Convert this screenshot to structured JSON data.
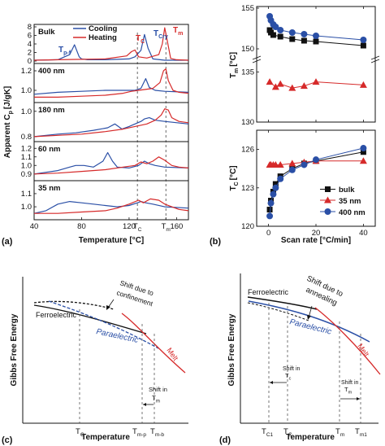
{
  "chart_data": [
    {
      "panel": "(a)",
      "type": "line",
      "xlabel": "Temperature [°C]",
      "ylabel": "Apparent C",
      "ylabel_sub": "p",
      "ylabel_unit": "[J/gK]",
      "xlim": [
        40,
        170
      ],
      "x_ticks": [
        "40",
        "80",
        "120",
        "T",
        "T",
        "160"
      ],
      "x_tick_subs": [
        "",
        "",
        "",
        "C",
        "m",
        ""
      ],
      "legend": [
        {
          "name": "Cooling",
          "color": "#2a4fa6"
        },
        {
          "name": "Heating",
          "color": "#d62a2a"
        }
      ],
      "peak_labels": [
        {
          "text": "T",
          "sub": "p-f",
          "color": "#2a4fa6"
        },
        {
          "text": "T",
          "sub": "C",
          "color": "#d62a2a"
        },
        {
          "text": "T",
          "sub": "Cry",
          "color": "#2a4fa6"
        },
        {
          "text": "T",
          "sub": "m",
          "color": "#d62a2a"
        }
      ],
      "subplots": [
        {
          "label": "Bulk",
          "ylim": [
            0,
            8
          ],
          "ticks": [
            "0",
            "2",
            "4",
            "6",
            "8"
          ],
          "series": [
            {
              "name": "Cooling",
              "x": [
                40,
                60,
                70,
                74,
                78,
                80,
                85,
                100,
                120,
                125,
                130,
                133,
                136,
                140,
                150,
                170
              ],
              "values": [
                0.2,
                0.3,
                1.5,
                3.8,
                1.0,
                0.5,
                0.3,
                0.3,
                0.5,
                1.0,
                2.5,
                6.2,
                3.0,
                0.5,
                0.2,
                0.2
              ]
            },
            {
              "name": "Heating",
              "x": [
                40,
                60,
                80,
                100,
                118,
                122,
                125,
                128,
                135,
                145,
                148,
                150,
                152,
                155,
                160,
                170
              ],
              "values": [
                0.2,
                0.3,
                0.4,
                0.5,
                1.2,
                2.2,
                2.6,
                1.0,
                0.7,
                1.5,
                4.0,
                7.8,
                5.0,
                0.6,
                0.3,
                0.2
              ]
            }
          ]
        },
        {
          "label": "400 nm",
          "ylim": [
            0.9,
            1.25
          ],
          "ticks": [
            "1.0",
            "1.2"
          ],
          "series": [
            {
              "name": "Cooling",
              "x": [
                40,
                60,
                80,
                100,
                115,
                125,
                130,
                134,
                137,
                142,
                150,
                170
              ],
              "values": [
                0.96,
                0.98,
                0.99,
                1.0,
                1.0,
                1.0,
                1.02,
                1.12,
                1.03,
                1.0,
                0.99,
                0.98
              ]
            },
            {
              "name": "Heating",
              "x": [
                40,
                60,
                80,
                100,
                115,
                122,
                128,
                140,
                146,
                149,
                151,
                153,
                157,
                162,
                170
              ],
              "values": [
                0.93,
                0.93,
                0.94,
                0.95,
                0.97,
                0.99,
                1.0,
                1.02,
                1.08,
                1.2,
                1.22,
                1.1,
                1.0,
                0.98,
                0.97
              ]
            }
          ]
        },
        {
          "label": "180 nm",
          "ylim": [
            0.78,
            1.05
          ],
          "ticks": [
            "0.8",
            "1.0"
          ],
          "series": [
            {
              "name": "Cooling",
              "x": [
                40,
                60,
                75,
                90,
                102,
                108,
                114,
                120,
                125,
                130,
                133,
                137,
                142,
                150,
                170
              ],
              "values": [
                0.8,
                0.82,
                0.83,
                0.85,
                0.87,
                0.9,
                0.86,
                0.88,
                0.9,
                0.92,
                0.94,
                0.95,
                0.93,
                0.92,
                0.9
              ]
            },
            {
              "name": "Heating",
              "x": [
                40,
                60,
                80,
                100,
                115,
                125,
                135,
                142,
                147,
                150,
                153,
                156,
                162,
                170
              ],
              "values": [
                0.8,
                0.81,
                0.82,
                0.84,
                0.86,
                0.88,
                0.9,
                0.93,
                0.97,
                1.02,
                1.01,
                0.95,
                0.92,
                0.91
              ]
            }
          ]
        },
        {
          "label": "60 nm",
          "ylim": [
            0.85,
            1.25
          ],
          "ticks": [
            "0.9",
            "1.0",
            "1.1",
            "1.2"
          ],
          "series": [
            {
              "name": "Cooling",
              "x": [
                40,
                50,
                60,
                70,
                75,
                82,
                90,
                98,
                102,
                106,
                110,
                120,
                128,
                133,
                137,
                142,
                150,
                170
              ],
              "values": [
                0.9,
                0.92,
                0.94,
                0.98,
                1.0,
                1.0,
                0.98,
                1.05,
                1.15,
                1.05,
                0.98,
                0.97,
                1.0,
                1.05,
                1.02,
                1.0,
                0.98,
                0.97
              ]
            },
            {
              "name": "Heating",
              "x": [
                40,
                60,
                80,
                100,
                115,
                125,
                130,
                135,
                140,
                145,
                150,
                156,
                162,
                170
              ],
              "values": [
                0.9,
                0.91,
                0.93,
                0.95,
                0.98,
                1.0,
                1.04,
                1.02,
                1.05,
                1.1,
                1.06,
                1.0,
                0.98,
                0.97
              ]
            }
          ]
        },
        {
          "label": "35 nm",
          "ylim": [
            0.92,
            1.18
          ],
          "ticks": [
            "1.0",
            "1.1"
          ],
          "series": [
            {
              "name": "Cooling",
              "x": [
                40,
                50,
                60,
                70,
                80,
                90,
                100,
                110,
                120,
                127,
                130,
                134,
                140,
                150,
                170
              ],
              "values": [
                0.95,
                0.97,
                1.02,
                1.04,
                1.03,
                1.02,
                1.01,
                1.0,
                1.01,
                1.03,
                1.04,
                1.03,
                1.02,
                1.0,
                0.99
              ]
            },
            {
              "name": "Heating",
              "x": [
                40,
                60,
                80,
                100,
                110,
                120,
                128,
                132,
                138,
                145,
                150,
                156,
                162,
                170
              ],
              "values": [
                0.95,
                0.95,
                0.96,
                0.97,
                0.99,
                1.02,
                1.05,
                1.03,
                1.06,
                1.05,
                1.02,
                1.0,
                0.98,
                0.97
              ]
            }
          ]
        }
      ]
    },
    {
      "panel": "(b)",
      "type": "scatter",
      "xlabel": "Scan rate [°C/min]",
      "xlim": [
        -5,
        45
      ],
      "x_ticks": [
        "0",
        "20",
        "40"
      ],
      "legend": [
        {
          "name": "bulk",
          "color": "#111111",
          "marker": "square"
        },
        {
          "name": "35 nm",
          "color": "#d62a2a",
          "marker": "triangle"
        },
        {
          "name": "400 nm",
          "color": "#2a4fa6",
          "marker": "circle"
        }
      ],
      "top": {
        "ylabel": "T",
        "ylabel_sub": "m",
        "ylabel_unit": "[°C]",
        "upper_ticks": [
          "150",
          "155"
        ],
        "lower_ticks": [
          "130",
          "135"
        ],
        "series": [
          {
            "name": "bulk",
            "x": [
              0.5,
              1,
              2,
              5,
              10,
              15,
              20,
              40
            ],
            "values": [
              152.3,
              152.0,
              151.7,
              151.5,
              151.2,
              151.0,
              150.9,
              150.4
            ]
          },
          {
            "name": "400 nm",
            "x": [
              0.5,
              1,
              2,
              3,
              5,
              10,
              15,
              20,
              40
            ],
            "values": [
              154.0,
              153.5,
              153.0,
              152.7,
              152.3,
              152.0,
              151.8,
              151.6,
              151.1
            ]
          },
          {
            "name": "35 nm",
            "x": [
              0.5,
              3,
              5,
              10,
              15,
              20,
              40
            ],
            "values": [
              134.0,
              133.5,
              133.8,
              133.4,
              133.6,
              134.0,
              133.7
            ]
          }
        ]
      },
      "bottom": {
        "ylabel": "T",
        "ylabel_sub": "C",
        "ylabel_unit": "[°C]",
        "ylim": [
          120,
          127.5
        ],
        "y_ticks": [
          "120",
          "123",
          "126"
        ],
        "series": [
          {
            "name": "bulk",
            "x": [
              0.5,
              1,
              2,
              3,
              5,
              10,
              15,
              20,
              40
            ],
            "values": [
              121.3,
              122.0,
              122.7,
              123.3,
              123.9,
              124.5,
              124.9,
              125.1,
              125.8
            ]
          },
          {
            "name": "35 nm",
            "x": [
              0.5,
              1,
              2,
              3,
              5,
              10,
              15,
              20,
              40
            ],
            "values": [
              124.8,
              124.8,
              124.8,
              124.8,
              124.8,
              124.9,
              125.0,
              125.1,
              125.1
            ]
          },
          {
            "name": "400 nm",
            "x": [
              0.5,
              1,
              2,
              3,
              5,
              10,
              15,
              20,
              40
            ],
            "values": [
              120.8,
              121.8,
              122.5,
              123.0,
              123.7,
              124.4,
              124.8,
              125.2,
              126.1
            ]
          }
        ]
      }
    },
    {
      "panel": "(c)",
      "type": "line",
      "xlabel": "Temperature",
      "ylabel": "Gibbs Free Energy",
      "labels": [
        "Ferroelectric",
        "Paraelectric",
        "Melt"
      ],
      "annotations": [
        "Shift due to",
        "confinement",
        "Shift in",
        "T"
      ],
      "annotation_subs": [
        "m"
      ],
      "x_ticks": [
        "T",
        "T",
        "T"
      ],
      "x_tick_subs": [
        "C",
        "m-p",
        "m-b"
      ]
    },
    {
      "panel": "(d)",
      "type": "line",
      "xlabel": "Temperature",
      "ylabel": "Gibbs Free Energy",
      "labels": [
        "Ferroelectric",
        "Paraelectric",
        "Melt"
      ],
      "annotations": [
        "Shift due to",
        "annealing",
        "Shift in",
        "T",
        "Shift in",
        "T"
      ],
      "annotation_subs": [
        "c",
        "m"
      ],
      "x_ticks": [
        "T",
        "T",
        "T",
        "T"
      ],
      "x_tick_subs": [
        "C1",
        "C",
        "m",
        "m1"
      ]
    }
  ]
}
